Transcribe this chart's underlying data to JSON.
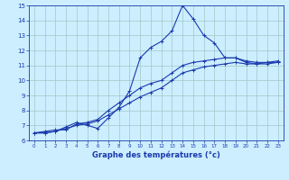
{
  "xlabel": "Graphe des températures (°c)",
  "bg_color": "#cceeff",
  "line_color": "#1a3aad",
  "xlim": [
    -0.5,
    23.5
  ],
  "ylim": [
    6,
    15
  ],
  "yticks": [
    6,
    7,
    8,
    9,
    10,
    11,
    12,
    13,
    14,
    15
  ],
  "xticks": [
    0,
    1,
    2,
    3,
    4,
    5,
    6,
    7,
    8,
    9,
    10,
    11,
    12,
    13,
    14,
    15,
    16,
    17,
    18,
    19,
    20,
    21,
    22,
    23
  ],
  "series1": [
    [
      0,
      6.5
    ],
    [
      1,
      6.5
    ],
    [
      2,
      6.6
    ],
    [
      3,
      6.9
    ],
    [
      4,
      7.2
    ],
    [
      5,
      7.0
    ],
    [
      6,
      6.8
    ],
    [
      7,
      7.5
    ],
    [
      8,
      8.2
    ],
    [
      9,
      9.3
    ],
    [
      10,
      11.5
    ],
    [
      11,
      12.2
    ],
    [
      12,
      12.6
    ],
    [
      13,
      13.3
    ],
    [
      14,
      15.0
    ],
    [
      15,
      14.1
    ],
    [
      16,
      13.0
    ],
    [
      17,
      12.5
    ],
    [
      18,
      11.5
    ],
    [
      19,
      11.5
    ],
    [
      20,
      11.2
    ],
    [
      21,
      11.1
    ],
    [
      22,
      11.2
    ],
    [
      23,
      11.2
    ]
  ],
  "series2": [
    [
      0,
      6.5
    ],
    [
      1,
      6.6
    ],
    [
      2,
      6.7
    ],
    [
      3,
      6.7
    ],
    [
      4,
      7.1
    ],
    [
      5,
      7.2
    ],
    [
      6,
      7.4
    ],
    [
      7,
      8.0
    ],
    [
      8,
      8.5
    ],
    [
      9,
      9.0
    ],
    [
      10,
      9.5
    ],
    [
      11,
      9.8
    ],
    [
      12,
      10.0
    ],
    [
      13,
      10.5
    ],
    [
      14,
      11.0
    ],
    [
      15,
      11.2
    ],
    [
      16,
      11.3
    ],
    [
      17,
      11.4
    ],
    [
      18,
      11.5
    ],
    [
      19,
      11.5
    ],
    [
      20,
      11.3
    ],
    [
      21,
      11.2
    ],
    [
      22,
      11.2
    ],
    [
      23,
      11.3
    ]
  ],
  "series3": [
    [
      0,
      6.5
    ],
    [
      1,
      6.5
    ],
    [
      2,
      6.6
    ],
    [
      3,
      6.8
    ],
    [
      4,
      7.0
    ],
    [
      5,
      7.1
    ],
    [
      6,
      7.3
    ],
    [
      7,
      7.7
    ],
    [
      8,
      8.1
    ],
    [
      9,
      8.5
    ],
    [
      10,
      8.9
    ],
    [
      11,
      9.2
    ],
    [
      12,
      9.5
    ],
    [
      13,
      10.0
    ],
    [
      14,
      10.5
    ],
    [
      15,
      10.7
    ],
    [
      16,
      10.9
    ],
    [
      17,
      11.0
    ],
    [
      18,
      11.1
    ],
    [
      19,
      11.2
    ],
    [
      20,
      11.1
    ],
    [
      21,
      11.1
    ],
    [
      22,
      11.1
    ],
    [
      23,
      11.2
    ]
  ],
  "markersize": 3,
  "linewidth": 0.8,
  "grid_color": "#a0c8c8",
  "tick_fontsize": 5,
  "xlabel_fontsize": 6,
  "xlabel_bold": true
}
